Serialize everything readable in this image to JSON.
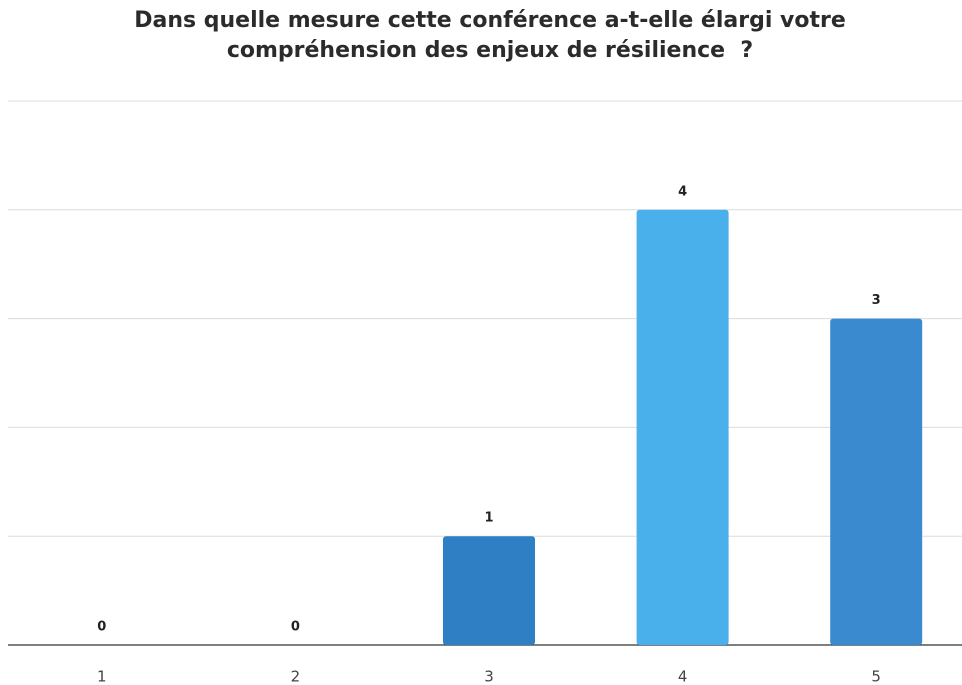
{
  "chart_data": {
    "type": "bar",
    "title": "Dans quelle mesure cette conférence a-t-elle élargi votre compréhension des enjeux de résilience  ?",
    "categories": [
      "1",
      "2",
      "3",
      "4",
      "5"
    ],
    "values": [
      0,
      0,
      1,
      4,
      3
    ],
    "colors": [
      "#2e7fc4",
      "#2e7fc4",
      "#2e7fc4",
      "#4ab0ec",
      "#3a8ad0"
    ],
    "ylim": [
      0,
      5
    ],
    "yticks": [
      0,
      1,
      2,
      3,
      4,
      5
    ],
    "grid": true
  }
}
